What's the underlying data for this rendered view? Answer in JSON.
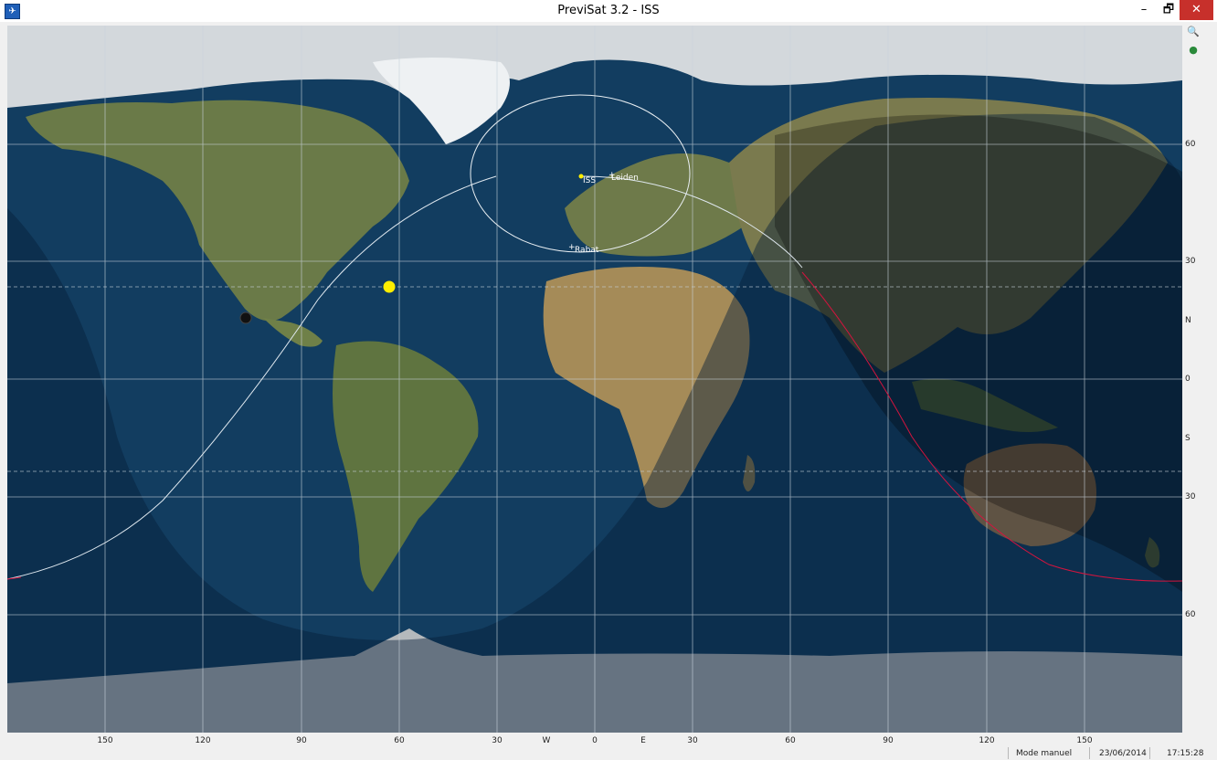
{
  "window": {
    "title": "PreviSat 3.2 - ISS",
    "minimize": "–",
    "maximize": "🗗",
    "close": "✕",
    "app_icon": "satellite-icon"
  },
  "toolbar": {
    "zoom_icon": "magnifier-icon",
    "globe_icon": "globe-icon"
  },
  "map": {
    "labels": {
      "iss": "ISS",
      "leiden": "Leiden",
      "rabat": "Rabat"
    },
    "lat_labels": [
      "60",
      "30",
      "N",
      "0",
      "S",
      "30",
      "60"
    ],
    "lon_labels": [
      "150",
      "120",
      "90",
      "60",
      "30",
      "W",
      "0",
      "E",
      "30",
      "60",
      "90",
      "120",
      "150"
    ]
  },
  "status": {
    "mode": "Mode manuel",
    "date": "23/06/2014",
    "time": "17:15:28"
  },
  "colors": {
    "ocean": "#123d60",
    "night": "#06203a",
    "sun": "#ffee00",
    "ground_track": "#dfe8ef",
    "ground_track_red": "#d3143e",
    "close_button": "#c7302b"
  }
}
